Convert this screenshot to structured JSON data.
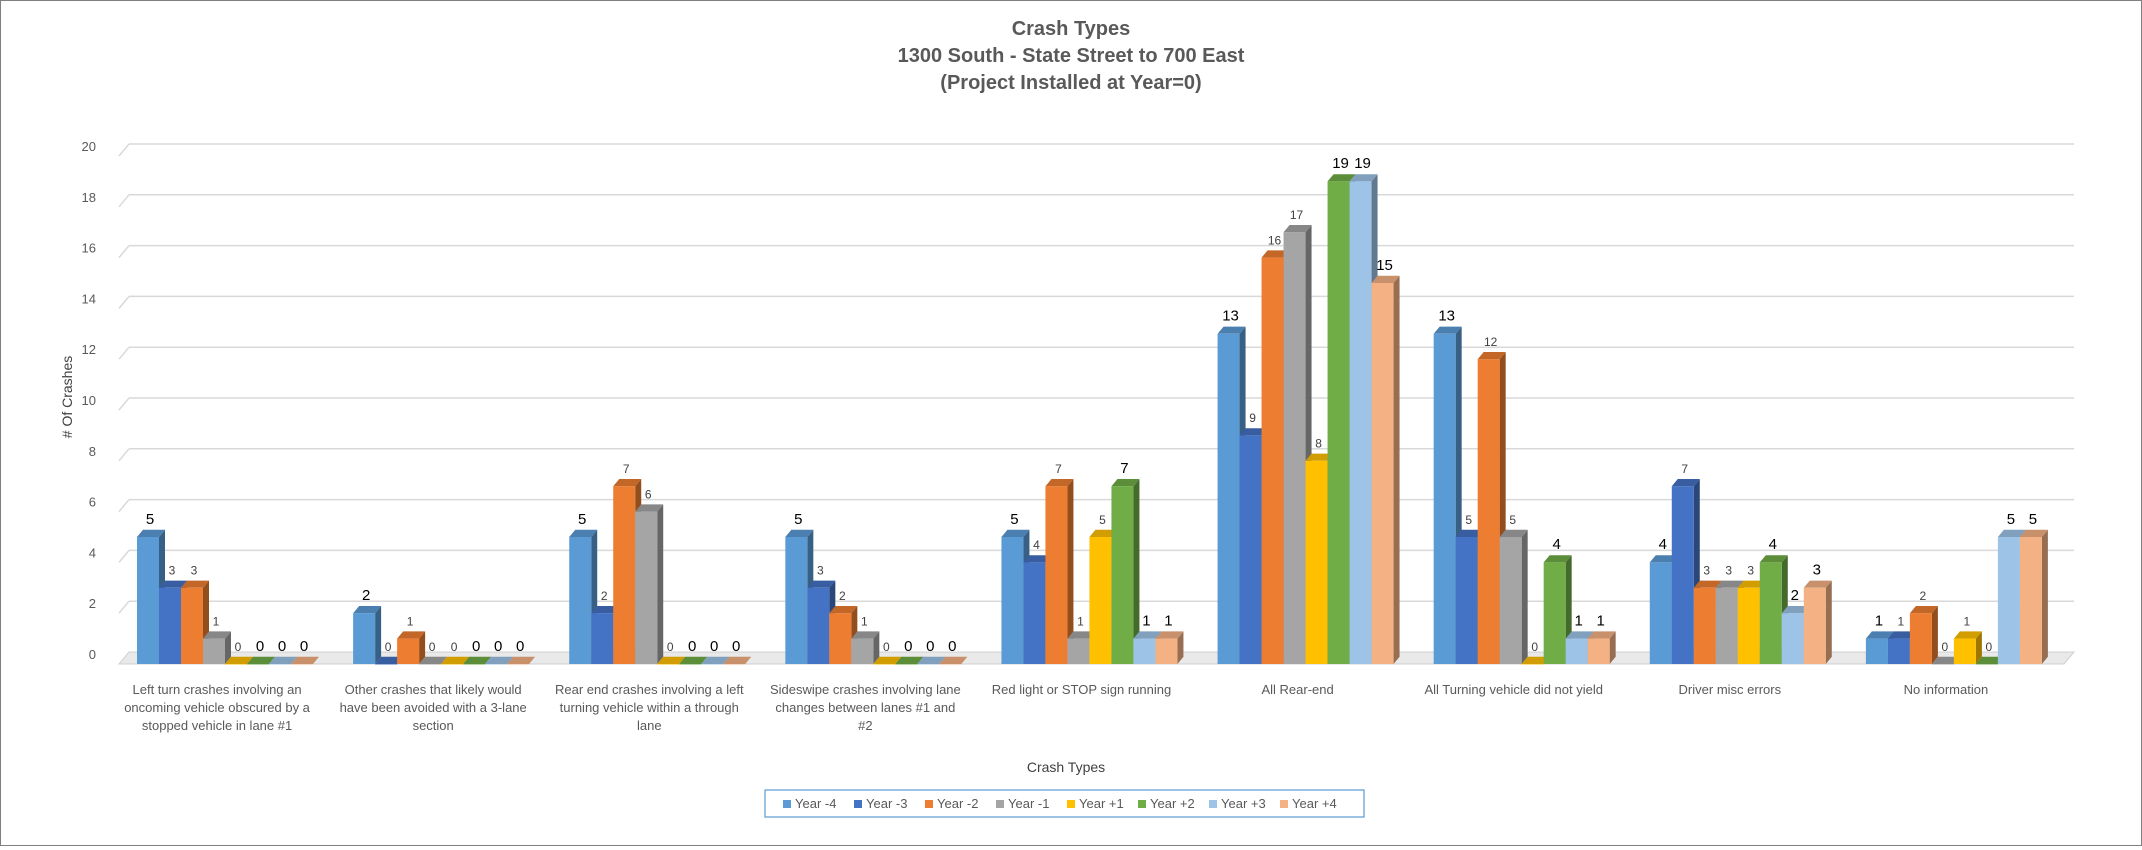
{
  "chart_data": {
    "type": "bar",
    "title_lines": [
      "Crash Types",
      "1300 South - State Street to 700 East",
      "(Project Installed at Year=0)"
    ],
    "xlabel": "Crash Types",
    "ylabel": "# Of Crashes",
    "ylim": [
      0,
      20
    ],
    "yticks": [
      0,
      2,
      4,
      6,
      8,
      10,
      12,
      14,
      16,
      18,
      20
    ],
    "grid": true,
    "legend_position": "bottom",
    "categories": [
      "Left turn crashes involving an oncoming vehicle obscured by a stopped vehicle in lane #1",
      "Other crashes that likely would have been avoided with a 3-lane section",
      "Rear end crashes involving a left turning vehicle within a through lane",
      "Sideswipe crashes involving lane changes between lanes #1 and #2",
      "Red light or STOP sign running",
      "All Rear-end",
      "All Turning vehicle did not yield",
      "Driver misc errors",
      "No information"
    ],
    "category_lines": [
      [
        "Left turn crashes involving an",
        "oncoming vehicle obscured by a",
        "stopped vehicle in lane #1"
      ],
      [
        "Other crashes that likely would",
        "have been avoided with a 3-lane",
        "section"
      ],
      [
        "Rear end crashes involving a left",
        "turning vehicle within a through",
        "lane"
      ],
      [
        "Sideswipe crashes involving lane",
        "changes between lanes #1 and",
        "#2"
      ],
      [
        "Red light or STOP sign running"
      ],
      [
        "All Rear-end"
      ],
      [
        "All Turning vehicle did not yield"
      ],
      [
        "Driver misc errors"
      ],
      [
        "No information"
      ]
    ],
    "series": [
      {
        "name": "Year -4",
        "color": "#5B9BD5",
        "values": [
          5,
          2,
          5,
          5,
          5,
          13,
          13,
          4,
          1
        ]
      },
      {
        "name": "Year -3",
        "color": "#4472C4",
        "values": [
          3,
          0,
          2,
          3,
          4,
          9,
          5,
          7,
          1
        ]
      },
      {
        "name": "Year -2",
        "color": "#ED7D31",
        "values": [
          3,
          1,
          7,
          2,
          7,
          16,
          12,
          3,
          2
        ]
      },
      {
        "name": "Year -1",
        "color": "#A5A5A5",
        "values": [
          1,
          0,
          6,
          1,
          1,
          17,
          5,
          3,
          0
        ]
      },
      {
        "name": "Year +1",
        "color": "#FFC000",
        "values": [
          0,
          0,
          0,
          0,
          5,
          8,
          0,
          3,
          1
        ]
      },
      {
        "name": "Year +2",
        "color": "#70AD47",
        "values": [
          0,
          0,
          0,
          0,
          7,
          19,
          4,
          4,
          0
        ]
      },
      {
        "name": "Year +3",
        "color": "#9DC3E6",
        "values": [
          0,
          0,
          0,
          0,
          1,
          19,
          1,
          2,
          5
        ]
      },
      {
        "name": "Year +4",
        "color": "#F4B183",
        "values": [
          0,
          0,
          0,
          0,
          1,
          15,
          1,
          3,
          5
        ]
      }
    ]
  }
}
